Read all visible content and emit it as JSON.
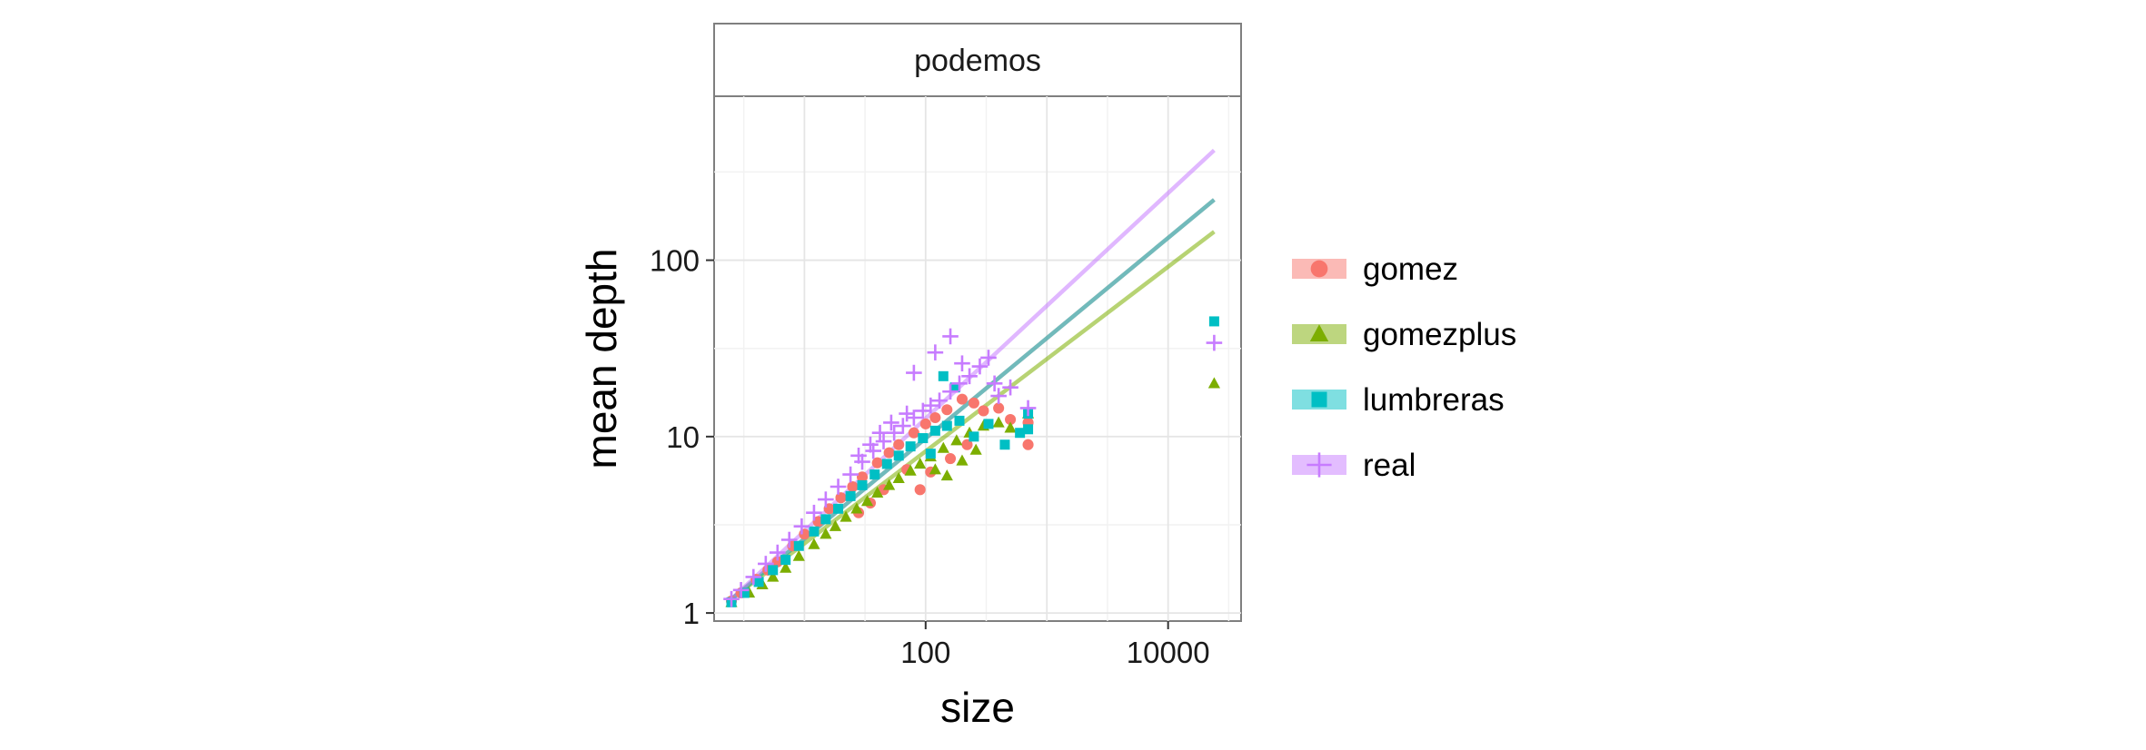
{
  "chart_data": {
    "type": "scatter",
    "facet_title": "podemos",
    "xlabel": "size",
    "ylabel": "mean depth",
    "x_scale": "log10",
    "y_scale": "log10",
    "xlim": [
      1.8,
      40000
    ],
    "ylim": [
      0.9,
      850
    ],
    "x_ticks": [
      {
        "value": 100,
        "label": "100"
      },
      {
        "value": 10000,
        "label": "10000"
      }
    ],
    "y_ticks": [
      {
        "value": 1,
        "label": "1"
      },
      {
        "value": 10,
        "label": "10"
      },
      {
        "value": 100,
        "label": "100"
      }
    ],
    "grid": true,
    "legend_position": "right",
    "series": [
      {
        "name": "gomez",
        "color": "#F8766D",
        "shape": "circle",
        "fit": {
          "x0": 2.5,
          "y0": 1.2,
          "x1": 24000,
          "y1": 220
        },
        "points": [
          [
            2.5,
            1.17
          ],
          [
            3.0,
            1.3
          ],
          [
            4,
            1.55
          ],
          [
            5,
            1.75
          ],
          [
            6,
            1.95
          ],
          [
            8,
            2.4
          ],
          [
            10,
            2.8
          ],
          [
            13,
            3.3
          ],
          [
            16,
            3.9
          ],
          [
            20,
            4.5
          ],
          [
            25,
            5.2
          ],
          [
            30,
            5.9
          ],
          [
            40,
            7.1
          ],
          [
            50,
            8.1
          ],
          [
            60,
            9.0
          ],
          [
            80,
            10.5
          ],
          [
            100,
            11.8
          ],
          [
            120,
            12.8
          ],
          [
            150,
            14.2
          ],
          [
            200,
            16.3
          ],
          [
            250,
            15.5
          ],
          [
            300,
            14.0
          ],
          [
            400,
            14.5
          ],
          [
            500,
            12.5
          ],
          [
            700,
            12.0
          ],
          [
            700,
            9.0
          ],
          [
            90,
            5.0
          ],
          [
            110,
            6.3
          ],
          [
            160,
            7.5
          ],
          [
            220,
            9.0
          ],
          [
            28,
            3.7
          ],
          [
            35,
            4.2
          ],
          [
            45,
            5.0
          ],
          [
            70,
            6.5
          ]
        ]
      },
      {
        "name": "gomezplus",
        "color": "#7CAE00",
        "shape": "triangle",
        "fit": {
          "x0": 2.5,
          "y0": 1.2,
          "x1": 24000,
          "y1": 145
        },
        "points": [
          [
            2.5,
            1.15
          ],
          [
            3.5,
            1.3
          ],
          [
            4.5,
            1.45
          ],
          [
            5.5,
            1.6
          ],
          [
            7,
            1.8
          ],
          [
            9,
            2.1
          ],
          [
            12,
            2.45
          ],
          [
            15,
            2.8
          ],
          [
            18,
            3.1
          ],
          [
            22,
            3.5
          ],
          [
            27,
            3.9
          ],
          [
            33,
            4.3
          ],
          [
            40,
            4.8
          ],
          [
            50,
            5.3
          ],
          [
            60,
            5.8
          ],
          [
            75,
            6.4
          ],
          [
            90,
            7.0
          ],
          [
            110,
            7.7
          ],
          [
            140,
            8.6
          ],
          [
            180,
            9.5
          ],
          [
            230,
            10.5
          ],
          [
            300,
            11.5
          ],
          [
            400,
            12.0
          ],
          [
            500,
            11.2
          ],
          [
            700,
            13.5
          ],
          [
            150,
            6.0
          ],
          [
            200,
            7.3
          ],
          [
            260,
            8.4
          ],
          [
            120,
            6.5
          ],
          [
            24000,
            20
          ]
        ]
      },
      {
        "name": "lumbreras",
        "color": "#00BFC4",
        "shape": "square",
        "fit": {
          "x0": 2.5,
          "y0": 1.2,
          "x1": 24000,
          "y1": 220
        },
        "points": [
          [
            2.5,
            1.15
          ],
          [
            3.2,
            1.3
          ],
          [
            4.2,
            1.5
          ],
          [
            5.5,
            1.75
          ],
          [
            7,
            2.0
          ],
          [
            9,
            2.4
          ],
          [
            12,
            2.9
          ],
          [
            15,
            3.4
          ],
          [
            19,
            3.9
          ],
          [
            24,
            4.6
          ],
          [
            30,
            5.3
          ],
          [
            38,
            6.1
          ],
          [
            48,
            7.0
          ],
          [
            60,
            7.8
          ],
          [
            75,
            8.8
          ],
          [
            95,
            9.8
          ],
          [
            120,
            10.8
          ],
          [
            150,
            11.5
          ],
          [
            190,
            12.3
          ],
          [
            250,
            10.0
          ],
          [
            330,
            11.8
          ],
          [
            450,
            9.0
          ],
          [
            600,
            10.5
          ],
          [
            700,
            11.0
          ],
          [
            700,
            13.5
          ],
          [
            140,
            22
          ],
          [
            175,
            19
          ],
          [
            110,
            8.0
          ],
          [
            24000,
            45
          ]
        ]
      },
      {
        "name": "real",
        "color": "#C77CFF",
        "shape": "cross",
        "fit": {
          "x0": 2.5,
          "y0": 1.2,
          "x1": 24000,
          "y1": 420
        },
        "points": [
          [
            2.5,
            1.2
          ],
          [
            3.0,
            1.35
          ],
          [
            3.8,
            1.6
          ],
          [
            4.8,
            1.9
          ],
          [
            6,
            2.2
          ],
          [
            7.5,
            2.6
          ],
          [
            9.5,
            3.1
          ],
          [
            12,
            3.7
          ],
          [
            15,
            4.4
          ],
          [
            19,
            5.2
          ],
          [
            24,
            6.1
          ],
          [
            30,
            7.2
          ],
          [
            37,
            8.3
          ],
          [
            45,
            9.4
          ],
          [
            55,
            10.5
          ],
          [
            65,
            11.5
          ],
          [
            80,
            12.8
          ],
          [
            95,
            14.0
          ],
          [
            110,
            15.0
          ],
          [
            130,
            16.0
          ],
          [
            160,
            18.0
          ],
          [
            190,
            20.0
          ],
          [
            230,
            22.0
          ],
          [
            280,
            25.0
          ],
          [
            330,
            28.0
          ],
          [
            370,
            20.0
          ],
          [
            400,
            17.0
          ],
          [
            500,
            19.0
          ],
          [
            700,
            14.5
          ],
          [
            120,
            30
          ],
          [
            160,
            37
          ],
          [
            80,
            23
          ],
          [
            200,
            26
          ],
          [
            35,
            9.0
          ],
          [
            42,
            10.5
          ],
          [
            28,
            7.8
          ],
          [
            52,
            12.0
          ],
          [
            70,
            13.5
          ],
          [
            24000,
            34
          ]
        ]
      }
    ]
  }
}
